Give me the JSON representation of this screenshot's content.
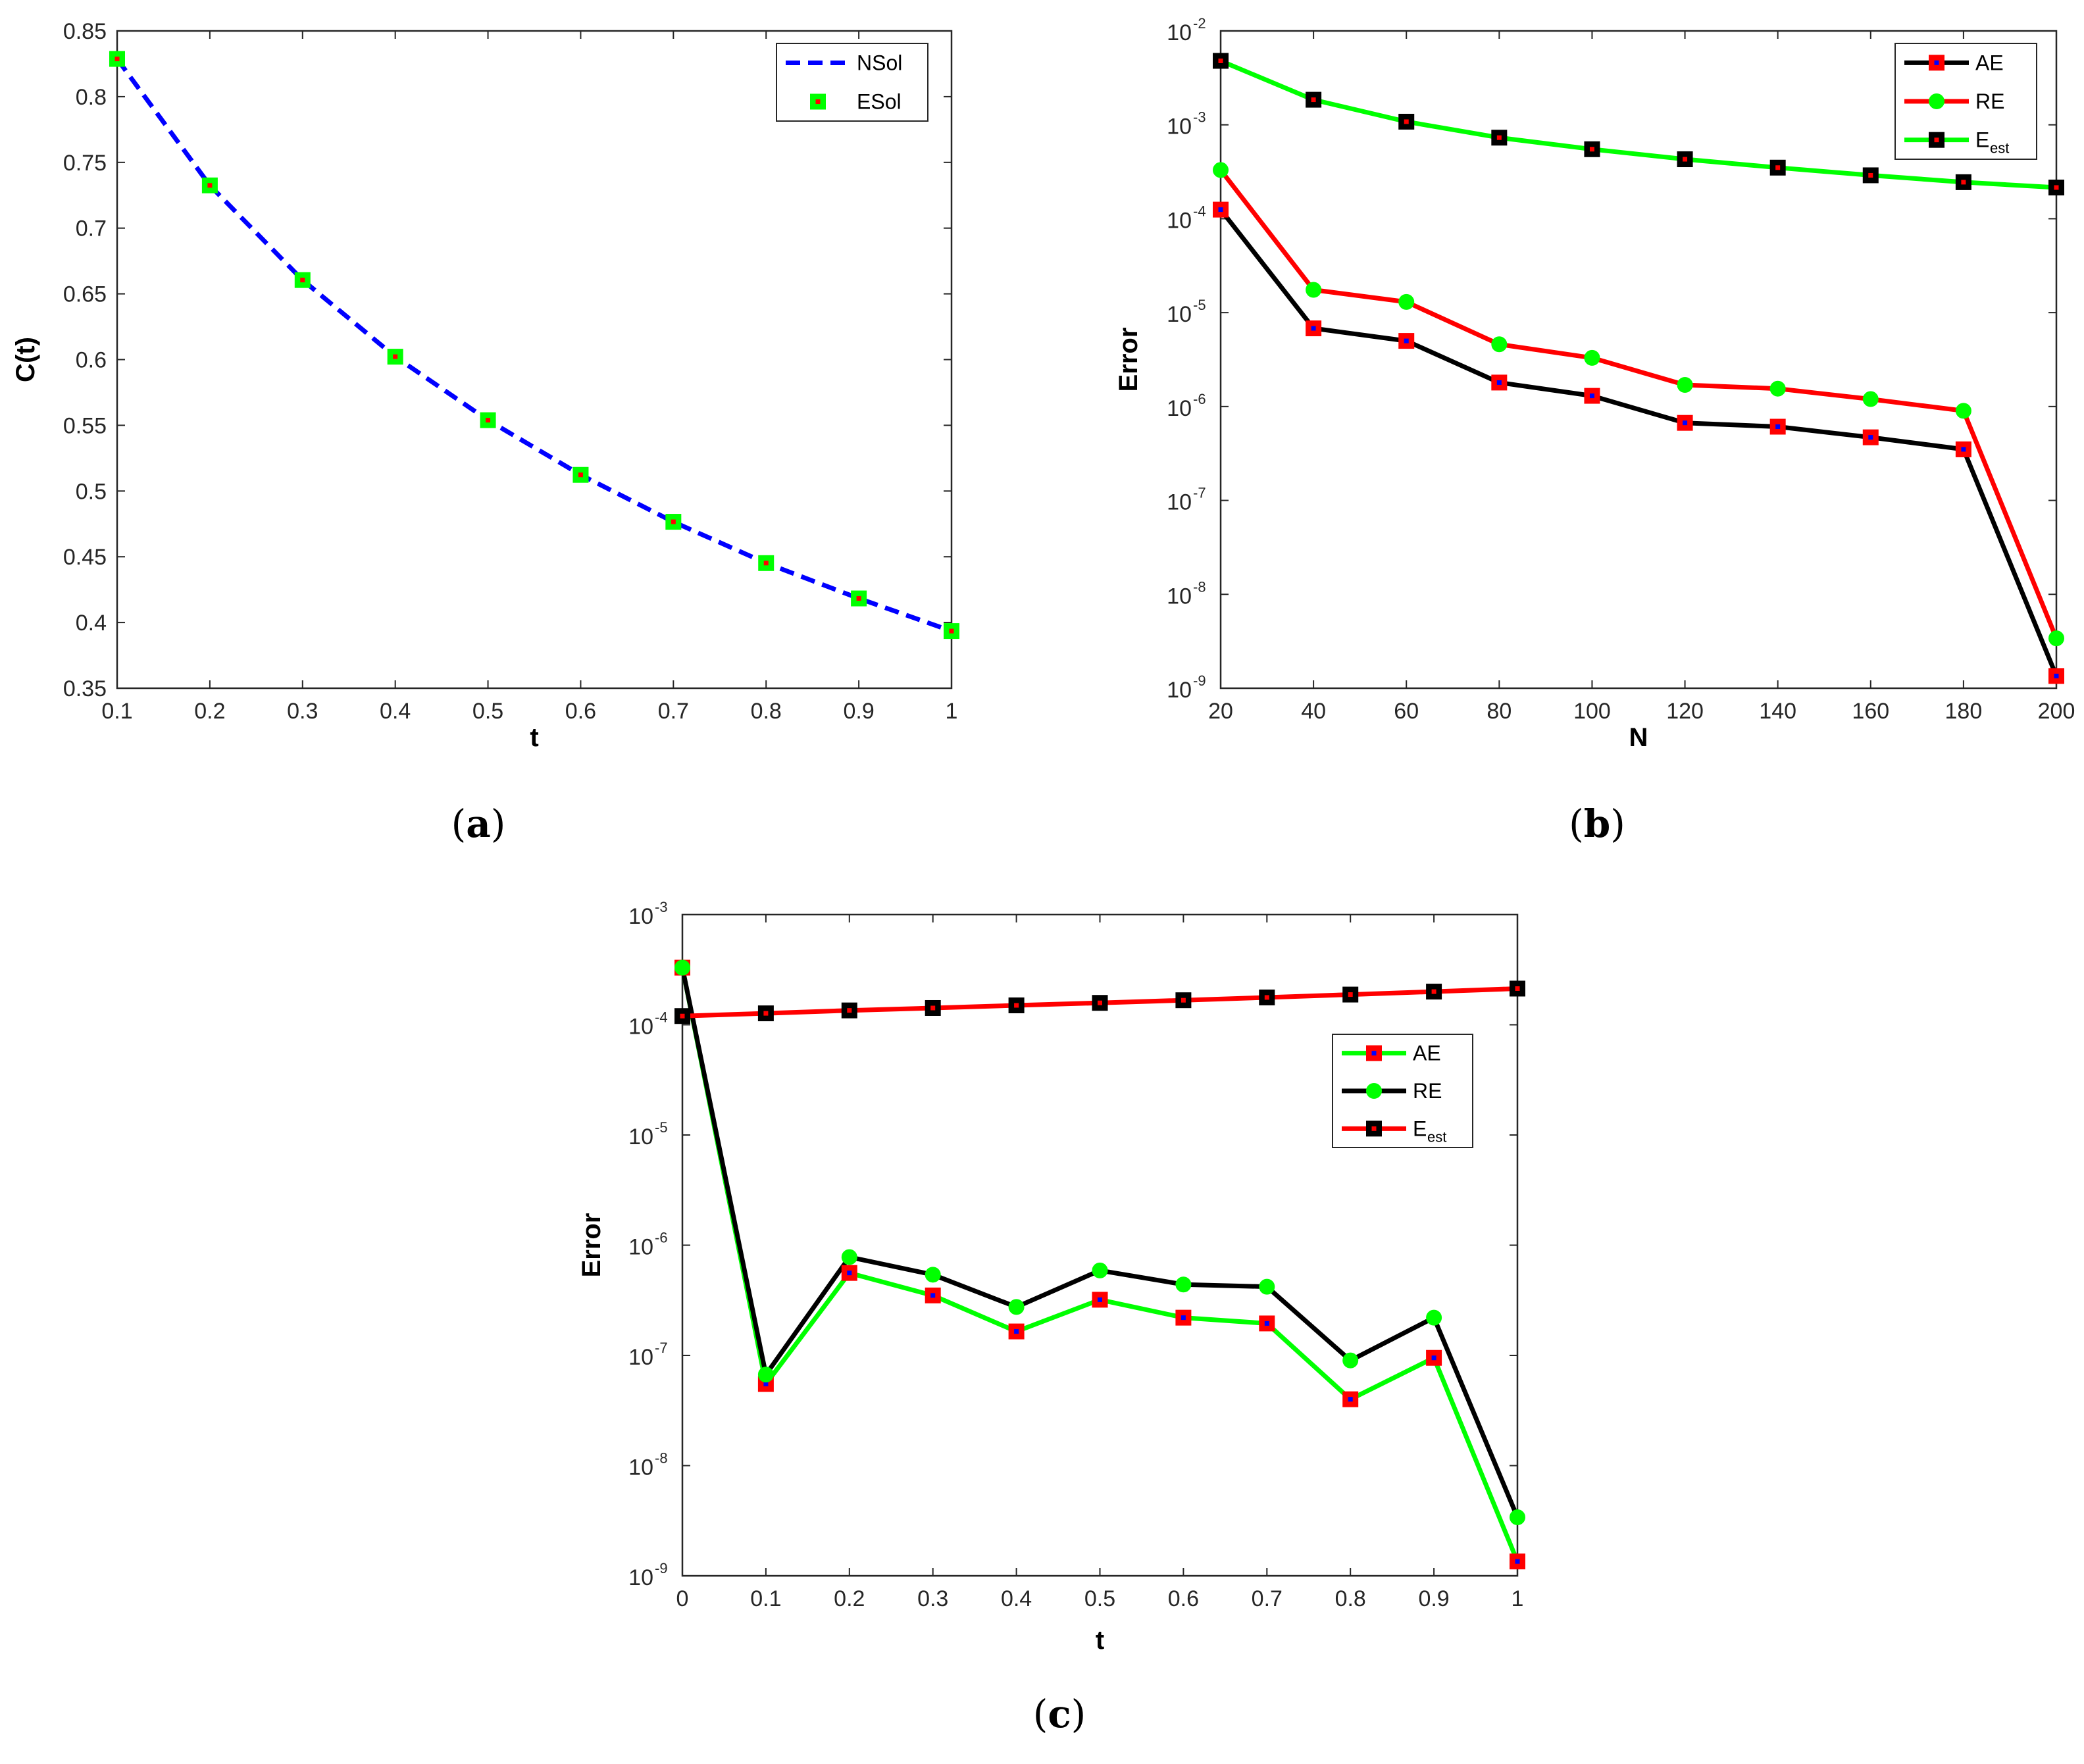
{
  "colors": {
    "blue": "#0000FF",
    "red": "#FF0000",
    "green": "#00FF00",
    "black": "#000000",
    "axis": "#262626"
  },
  "chart_data": [
    {
      "id": "a",
      "caption": "(a)",
      "caption_letter": "a",
      "type": "line",
      "xlabel": "t",
      "ylabel": "C(t)",
      "xlim": [
        0.1,
        1
      ],
      "ylim": [
        0.35,
        0.85
      ],
      "yscale": "linear",
      "xticks": [
        0.1,
        0.2,
        0.3,
        0.4,
        0.5,
        0.6,
        0.7,
        0.8,
        0.9,
        1
      ],
      "xtick_labels": [
        "0.1",
        "0.2",
        "0.3",
        "0.4",
        "0.5",
        "0.6",
        "0.7",
        "0.8",
        "0.9",
        "1"
      ],
      "yticks": [
        0.35,
        0.4,
        0.45,
        0.5,
        0.55,
        0.6,
        0.65,
        0.7,
        0.75,
        0.8,
        0.85
      ],
      "ytick_labels": [
        "0.35",
        "0.4",
        "0.45",
        "0.5",
        "0.55",
        "0.6",
        "0.65",
        "0.7",
        "0.75",
        "0.8",
        "0.85"
      ],
      "legend_position": "top-right",
      "series": [
        {
          "name": "NSol",
          "style": "dashed",
          "line_color": "#0000FF",
          "marker": "none",
          "x": [
            0.1,
            0.2,
            0.3,
            0.4,
            0.5,
            0.6,
            0.7,
            0.8,
            0.9,
            1.0
          ],
          "values": [
            0.8287,
            0.7325,
            0.6605,
            0.6022,
            0.5539,
            0.5123,
            0.4766,
            0.4452,
            0.4183,
            0.3935
          ]
        },
        {
          "name": "ESol",
          "style": "none",
          "line_color": "none",
          "marker": "square",
          "marker_face": "#00FF00",
          "marker_edge": "#00FF00",
          "marker_dot": "#FF0000",
          "x": [
            0.1,
            0.2,
            0.3,
            0.4,
            0.5,
            0.6,
            0.7,
            0.8,
            0.9,
            1.0
          ],
          "values": [
            0.8287,
            0.7325,
            0.6605,
            0.6022,
            0.5539,
            0.5123,
            0.4766,
            0.4452,
            0.4183,
            0.3935
          ]
        }
      ]
    },
    {
      "id": "b",
      "caption": "(b)",
      "caption_letter": "b",
      "type": "line",
      "xlabel": "N",
      "ylabel": "Error",
      "xlim": [
        20,
        200
      ],
      "ylim_exponents": [
        -9,
        -2
      ],
      "yscale": "log",
      "xticks": [
        20,
        40,
        60,
        80,
        100,
        120,
        140,
        160,
        180,
        200
      ],
      "xtick_labels": [
        "20",
        "40",
        "60",
        "80",
        "100",
        "120",
        "140",
        "160",
        "180",
        "200"
      ],
      "yticks_exponents": [
        -9,
        -8,
        -7,
        -6,
        -5,
        -4,
        -3,
        -2
      ],
      "ytick_base": "10",
      "ytick_exponent_labels": [
        "-9",
        "-8",
        "-7",
        "-6",
        "-5",
        "-4",
        "-3",
        "-2"
      ],
      "legend_position": "top-right",
      "series": [
        {
          "name": "AE",
          "name_sub": "",
          "style": "solid",
          "line_color": "#000000",
          "marker": "square",
          "marker_face": "#FF0000",
          "marker_edge": "#FF0000",
          "marker_dot": "#0000FF",
          "x": [
            20,
            40,
            60,
            80,
            100,
            120,
            140,
            160,
            180,
            200
          ],
          "values": [
            0.000125,
            6.8e-06,
            5e-06,
            1.8e-06,
            1.3e-06,
            6.7e-07,
            6.1e-07,
            4.7e-07,
            3.5e-07,
            1.35e-09
          ]
        },
        {
          "name": "RE",
          "name_sub": "",
          "style": "solid",
          "line_color": "#FF0000",
          "marker": "circle",
          "marker_face": "#00FF00",
          "marker_edge": "#00FF00",
          "marker_dot": "",
          "x": [
            20,
            40,
            60,
            80,
            100,
            120,
            140,
            160,
            180,
            200
          ],
          "values": [
            0.00033,
            1.75e-05,
            1.3e-05,
            4.6e-06,
            3.3e-06,
            1.7e-06,
            1.55e-06,
            1.2e-06,
            9e-07,
            3.4e-09
          ]
        },
        {
          "name": "E",
          "name_sub": "est",
          "style": "solid",
          "line_color": "#00FF00",
          "marker": "square",
          "marker_face": "#000000",
          "marker_edge": "#000000",
          "marker_dot": "#FF0000",
          "x": [
            20,
            40,
            60,
            80,
            100,
            120,
            140,
            160,
            180,
            200
          ],
          "values": [
            0.0048,
            0.00185,
            0.00108,
            0.00073,
            0.00055,
            0.00043,
            0.00035,
            0.00029,
            0.000245,
            0.000215
          ]
        }
      ]
    },
    {
      "id": "c",
      "caption": "(c)",
      "caption_letter": "c",
      "type": "line",
      "xlabel": "t",
      "ylabel": "Error",
      "xlim": [
        0,
        1
      ],
      "ylim_exponents": [
        -9,
        -3
      ],
      "yscale": "log",
      "xticks": [
        0,
        0.1,
        0.2,
        0.3,
        0.4,
        0.5,
        0.6,
        0.7,
        0.8,
        0.9,
        1
      ],
      "xtick_labels": [
        "0",
        "0.1",
        "0.2",
        "0.3",
        "0.4",
        "0.5",
        "0.6",
        "0.7",
        "0.8",
        "0.9",
        "1"
      ],
      "yticks_exponents": [
        -9,
        -8,
        -7,
        -6,
        -5,
        -4,
        -3
      ],
      "ytick_base": "10",
      "ytick_exponent_labels": [
        "-9",
        "-8",
        "-7",
        "-6",
        "-5",
        "-4",
        "-3"
      ],
      "legend_position": "upper-right",
      "series": [
        {
          "name": "AE",
          "name_sub": "",
          "style": "solid",
          "line_color": "#00FF00",
          "marker": "square",
          "marker_face": "#FF0000",
          "marker_edge": "#FF0000",
          "marker_dot": "#0000FF",
          "x": [
            0,
            0.1,
            0.2,
            0.3,
            0.4,
            0.5,
            0.6,
            0.7,
            0.8,
            0.9,
            1.0
          ],
          "values": [
            0.00033,
            5.5e-08,
            5.6e-07,
            3.5e-07,
            1.65e-07,
            3.2e-07,
            2.2e-07,
            1.95e-07,
            4e-08,
            9.5e-08,
            1.35e-09
          ]
        },
        {
          "name": "RE",
          "name_sub": "",
          "style": "solid",
          "line_color": "#000000",
          "marker": "circle",
          "marker_face": "#00FF00",
          "marker_edge": "#00FF00",
          "marker_dot": "",
          "x": [
            0,
            0.1,
            0.2,
            0.3,
            0.4,
            0.5,
            0.6,
            0.7,
            0.8,
            0.9,
            1.0
          ],
          "values": [
            0.00033,
            6.7e-08,
            7.8e-07,
            5.4e-07,
            2.75e-07,
            5.9e-07,
            4.4e-07,
            4.2e-07,
            9e-08,
            2.2e-07,
            3.4e-09
          ]
        },
        {
          "name": "E",
          "name_sub": "est",
          "style": "solid",
          "line_color": "#FF0000",
          "marker": "square",
          "marker_face": "#000000",
          "marker_edge": "#000000",
          "marker_dot": "#FF0000",
          "x": [
            0,
            0.1,
            0.2,
            0.3,
            0.4,
            0.5,
            0.6,
            0.7,
            0.8,
            0.9,
            1.0
          ],
          "values": [
            0.00012,
            0.000127,
            0.000135,
            0.000142,
            0.00015,
            0.000158,
            0.000167,
            0.000177,
            0.000188,
            0.0002,
            0.000213
          ]
        }
      ]
    }
  ]
}
